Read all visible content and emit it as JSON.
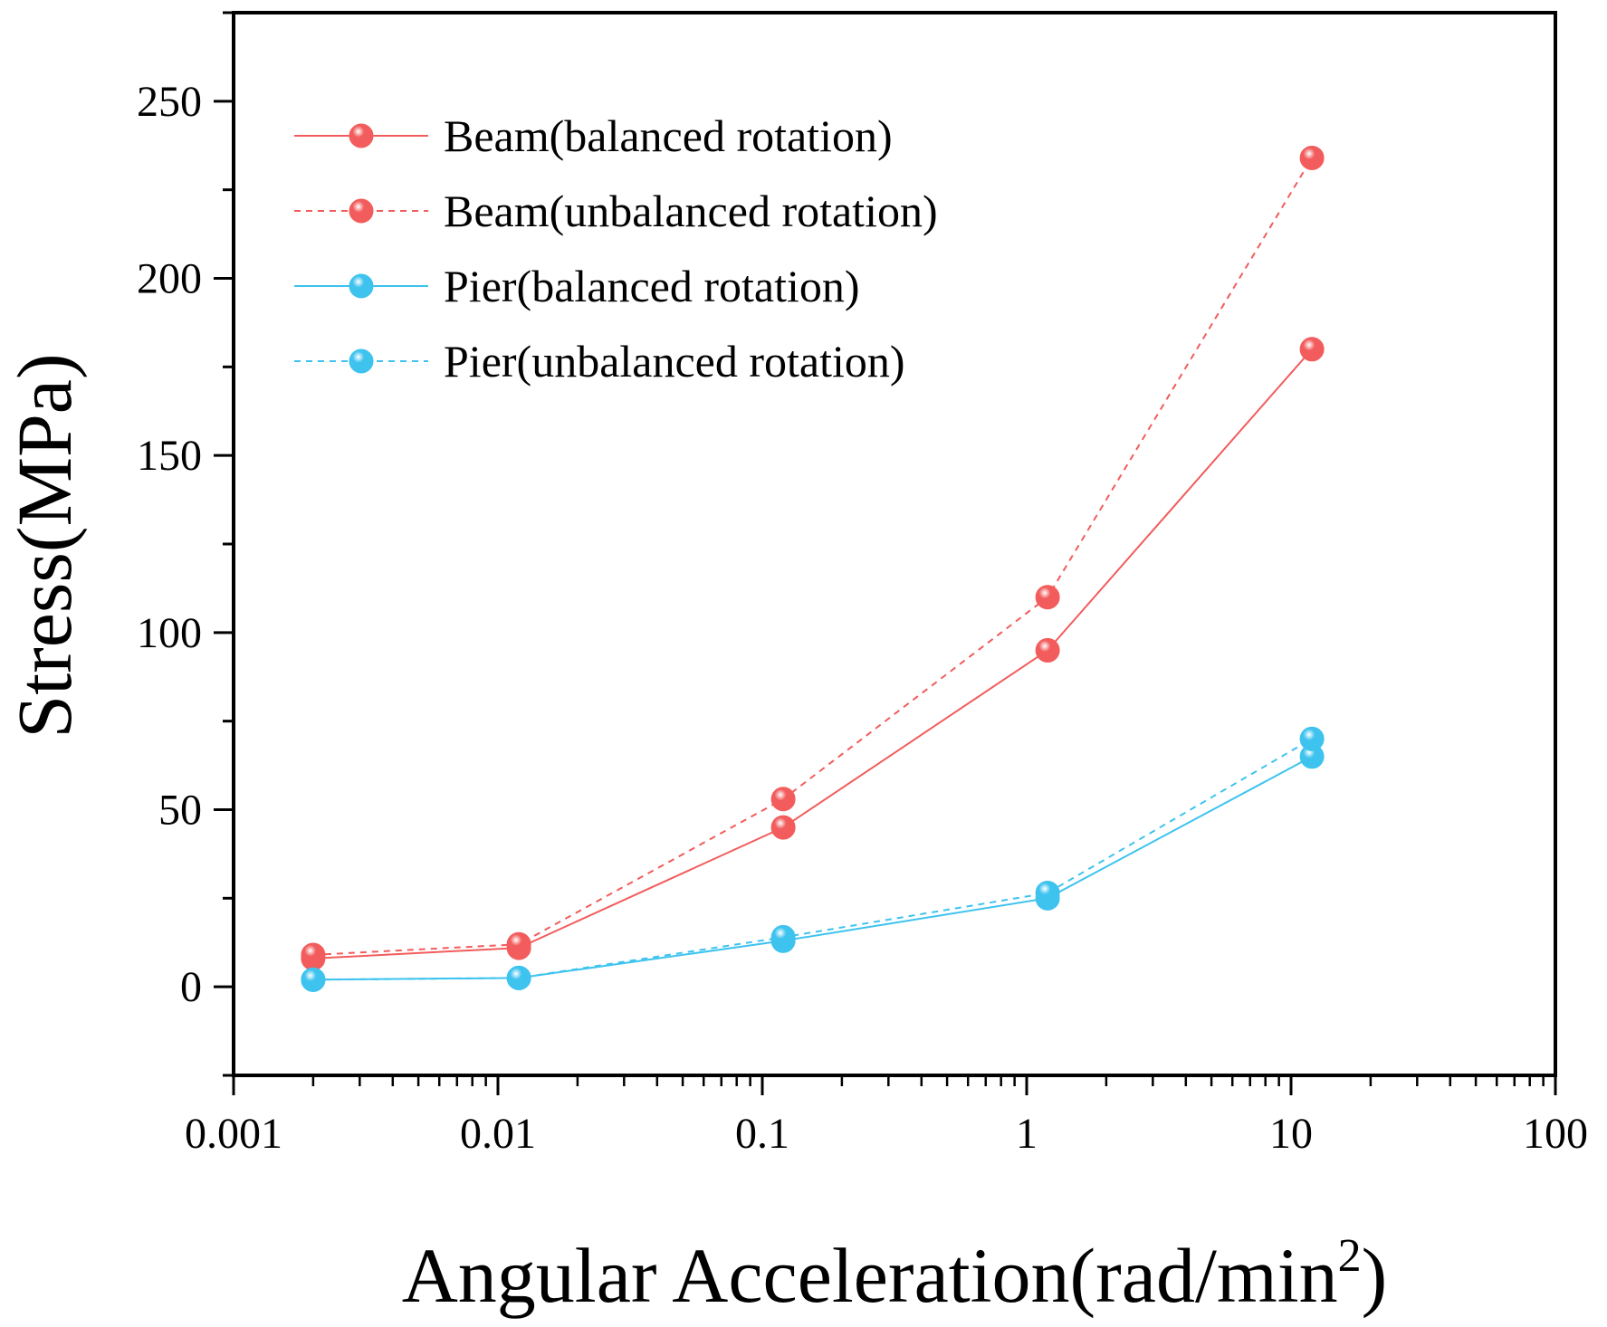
{
  "chart_data": {
    "type": "line",
    "x_scale": "log",
    "xlim": [
      0.001,
      100
    ],
    "ylim": [
      -25,
      275
    ],
    "x_ticks": [
      {
        "value": 0.001,
        "label": "0.001"
      },
      {
        "value": 0.01,
        "label": "0.01"
      },
      {
        "value": 0.1,
        "label": "0.1"
      },
      {
        "value": 1,
        "label": "1"
      },
      {
        "value": 10,
        "label": "10"
      },
      {
        "value": 100,
        "label": "100"
      }
    ],
    "y_ticks": [
      {
        "value": 0,
        "label": "0"
      },
      {
        "value": 50,
        "label": "50"
      },
      {
        "value": 100,
        "label": "100"
      },
      {
        "value": 150,
        "label": "150"
      },
      {
        "value": 200,
        "label": "200"
      },
      {
        "value": 250,
        "label": "250"
      }
    ],
    "xlabel": "Angular Acceleration(rad/min",
    "xlabel_superscript": "2",
    "xlabel_close": ")",
    "ylabel": "Stress(MPa)",
    "legend_position": "top-left",
    "x": [
      0.002,
      0.012,
      0.12,
      1.2,
      12
    ],
    "series": [
      {
        "name": "Beam(balanced rotation)",
        "color": "#f25c5c",
        "dash": "solid",
        "values": [
          8,
          11,
          45,
          95,
          180
        ]
      },
      {
        "name": "Beam(unbalanced rotation)",
        "color": "#f25c5c",
        "dash": "dashed",
        "values": [
          9,
          12,
          53,
          110,
          234
        ]
      },
      {
        "name": "Pier(balanced rotation)",
        "color": "#3ec3ef",
        "dash": "solid",
        "values": [
          2,
          2.5,
          13,
          25,
          65
        ]
      },
      {
        "name": "Pier(unbalanced rotation)",
        "color": "#3ec3ef",
        "dash": "dashed",
        "values": [
          2,
          2.5,
          14,
          26.5,
          70
        ]
      }
    ]
  }
}
